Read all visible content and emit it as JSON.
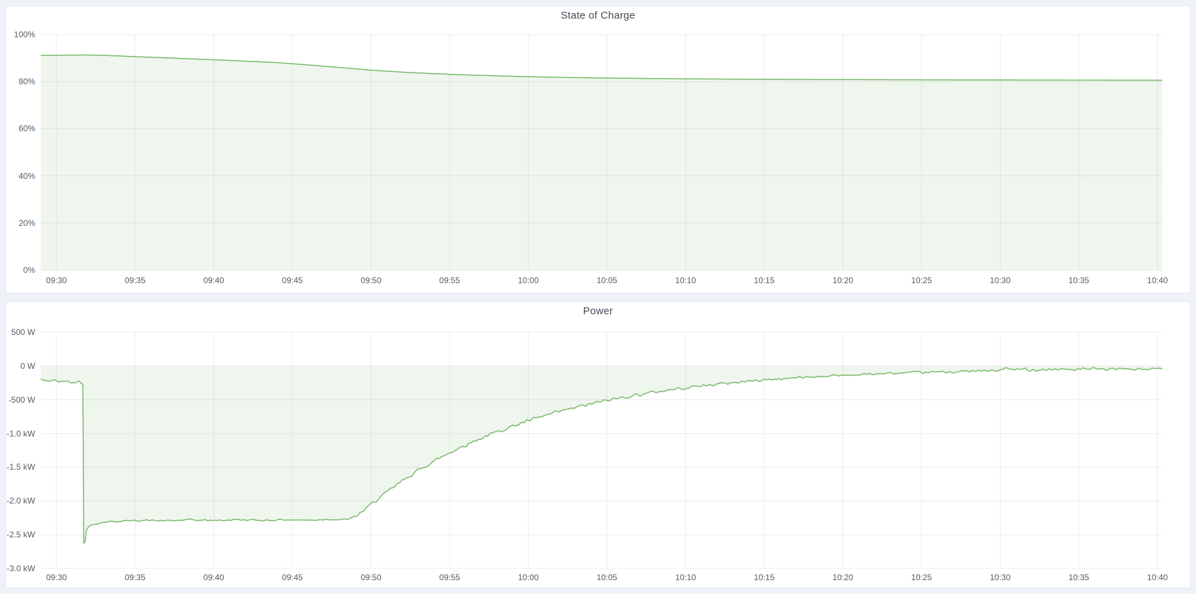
{
  "page": {
    "background_color": "#eff2f8",
    "panel_background": "#ffffff",
    "panel_border_color": "#e2e7f0",
    "title_color": "#454b57",
    "axis_text_color": "#565a62"
  },
  "chart_data": [
    {
      "id": "soc",
      "type": "area",
      "title": "State of Charge",
      "line_color": "#79b96d",
      "fill_opacity": 0.12,
      "grid_color": "#ececec",
      "legend": "none",
      "grid": "on",
      "xlim_minutes": [
        -1,
        70.3
      ],
      "ylim": [
        0,
        100
      ],
      "fill_to": 0,
      "noise_seed": 3,
      "x_ticks": [
        {
          "t": 0,
          "label": "09:30"
        },
        {
          "t": 5,
          "label": "09:35"
        },
        {
          "t": 10,
          "label": "09:40"
        },
        {
          "t": 15,
          "label": "09:45"
        },
        {
          "t": 20,
          "label": "09:50"
        },
        {
          "t": 25,
          "label": "09:55"
        },
        {
          "t": 30,
          "label": "10:00"
        },
        {
          "t": 35,
          "label": "10:05"
        },
        {
          "t": 40,
          "label": "10:10"
        },
        {
          "t": 45,
          "label": "10:15"
        },
        {
          "t": 50,
          "label": "10:20"
        },
        {
          "t": 55,
          "label": "10:25"
        },
        {
          "t": 60,
          "label": "10:30"
        },
        {
          "t": 65,
          "label": "10:35"
        },
        {
          "t": 70,
          "label": "10:40"
        }
      ],
      "y_ticks": [
        {
          "value": 100,
          "label": "100%"
        },
        {
          "value": 80,
          "label": "80%"
        },
        {
          "value": 60,
          "label": "60%"
        },
        {
          "value": 40,
          "label": "40%"
        },
        {
          "value": 20,
          "label": "20%"
        },
        {
          "value": 0,
          "label": "0%"
        }
      ],
      "points": [
        [
          -1,
          91.1
        ],
        [
          0,
          91.15
        ],
        [
          0.8,
          91.25
        ],
        [
          1.6,
          91.32
        ],
        [
          2.4,
          91.28
        ],
        [
          3.2,
          91.1
        ],
        [
          4,
          90.9
        ],
        [
          5,
          90.62
        ],
        [
          6,
          90.35
        ],
        [
          7,
          90.1
        ],
        [
          8,
          89.82
        ],
        [
          9,
          89.55
        ],
        [
          10,
          89.28
        ],
        [
          11,
          89.0
        ],
        [
          12,
          88.7
        ],
        [
          13,
          88.4
        ],
        [
          14,
          88.1
        ],
        [
          15,
          87.6
        ],
        [
          16,
          87.1
        ],
        [
          17,
          86.55
        ],
        [
          18,
          86.0
        ],
        [
          19,
          85.45
        ],
        [
          20,
          84.9
        ],
        [
          21,
          84.45
        ],
        [
          22,
          84.05
        ],
        [
          23,
          83.7
        ],
        [
          24,
          83.4
        ],
        [
          25,
          83.12
        ],
        [
          26,
          82.88
        ],
        [
          27,
          82.65
        ],
        [
          28,
          82.45
        ],
        [
          29,
          82.27
        ],
        [
          30,
          82.1
        ],
        [
          31,
          81.96
        ],
        [
          32,
          81.83
        ],
        [
          33,
          81.72
        ],
        [
          34,
          81.62
        ],
        [
          35,
          81.53
        ],
        [
          36,
          81.45
        ],
        [
          37,
          81.38
        ],
        [
          38,
          81.31
        ],
        [
          39,
          81.25
        ],
        [
          40,
          81.2
        ],
        [
          42,
          81.1
        ],
        [
          44,
          81.02
        ],
        [
          46,
          80.96
        ],
        [
          48,
          80.9
        ],
        [
          50,
          80.86
        ],
        [
          52,
          80.82
        ],
        [
          54,
          80.79
        ],
        [
          56,
          80.76
        ],
        [
          58,
          80.73
        ],
        [
          60,
          80.7
        ],
        [
          62,
          80.68
        ],
        [
          64,
          80.66
        ],
        [
          66,
          80.64
        ],
        [
          68,
          80.62
        ],
        [
          70.3,
          80.6
        ]
      ]
    },
    {
      "id": "power",
      "type": "area",
      "title": "Power",
      "line_color": "#79b96d",
      "fill_opacity": 0.12,
      "grid_color": "#ececec",
      "legend": "none",
      "grid": "on",
      "xlim_minutes": [
        -1,
        70.3
      ],
      "ylim": [
        -3000,
        500
      ],
      "fill_to": 0,
      "noise_seed": 42,
      "x_ticks": [
        {
          "t": 0,
          "label": "09:30"
        },
        {
          "t": 5,
          "label": "09:35"
        },
        {
          "t": 10,
          "label": "09:40"
        },
        {
          "t": 15,
          "label": "09:45"
        },
        {
          "t": 20,
          "label": "09:50"
        },
        {
          "t": 25,
          "label": "09:55"
        },
        {
          "t": 30,
          "label": "10:00"
        },
        {
          "t": 35,
          "label": "10:05"
        },
        {
          "t": 40,
          "label": "10:10"
        },
        {
          "t": 45,
          "label": "10:15"
        },
        {
          "t": 50,
          "label": "10:20"
        },
        {
          "t": 55,
          "label": "10:25"
        },
        {
          "t": 60,
          "label": "10:30"
        },
        {
          "t": 65,
          "label": "10:35"
        },
        {
          "t": 70,
          "label": "10:40"
        }
      ],
      "y_ticks": [
        {
          "value": 500,
          "label": "500 W"
        },
        {
          "value": 0,
          "label": "0 W"
        },
        {
          "value": -500,
          "label": "-500 W"
        },
        {
          "value": -1000,
          "label": "-1.0 kW"
        },
        {
          "value": -1500,
          "label": "-1.5 kW"
        },
        {
          "value": -2000,
          "label": "-2.0 kW"
        },
        {
          "value": -2500,
          "label": "-2.5 kW"
        },
        {
          "value": -3000,
          "label": "-3.0 kW"
        }
      ],
      "points": [
        [
          -1,
          -195,
          16
        ],
        [
          -0.6,
          -230,
          14
        ],
        [
          -0.2,
          -205,
          14
        ],
        [
          0.2,
          -240,
          14
        ],
        [
          0.6,
          -218,
          14
        ],
        [
          0.9,
          -245,
          12
        ],
        [
          1.2,
          -250,
          10
        ],
        [
          1.45,
          -215,
          8
        ],
        [
          1.6,
          -262,
          4
        ],
        [
          1.68,
          -268,
          2
        ],
        [
          1.74,
          -2630,
          2
        ],
        [
          1.82,
          -2600,
          4
        ],
        [
          1.92,
          -2420,
          6
        ],
        [
          2.1,
          -2370,
          8
        ],
        [
          2.4,
          -2345,
          10
        ],
        [
          2.8,
          -2325,
          12
        ],
        [
          3.2,
          -2310,
          14
        ],
        [
          4,
          -2300,
          15
        ],
        [
          5.5,
          -2285,
          15
        ],
        [
          7,
          -2295,
          15
        ],
        [
          8.5,
          -2280,
          15
        ],
        [
          10,
          -2290,
          15
        ],
        [
          11.5,
          -2278,
          15
        ],
        [
          13,
          -2288,
          14
        ],
        [
          14.5,
          -2278,
          14
        ],
        [
          16,
          -2285,
          14
        ],
        [
          17.3,
          -2272,
          13
        ],
        [
          18.2,
          -2278,
          12
        ],
        [
          18.6,
          -2265,
          12
        ],
        [
          19,
          -2235,
          20
        ],
        [
          19.5,
          -2145,
          22
        ],
        [
          20,
          -2050,
          24
        ],
        [
          20.5,
          -1960,
          25
        ],
        [
          21,
          -1870,
          26
        ],
        [
          21.5,
          -1785,
          27
        ],
        [
          22,
          -1700,
          28
        ],
        [
          22.5,
          -1622,
          28
        ],
        [
          23,
          -1548,
          29
        ],
        [
          23.5,
          -1477,
          29
        ],
        [
          24,
          -1410,
          30
        ],
        [
          24.5,
          -1345,
          30
        ],
        [
          25,
          -1285,
          30
        ],
        [
          25.5,
          -1228,
          30
        ],
        [
          26,
          -1173,
          30
        ],
        [
          26.5,
          -1120,
          30
        ],
        [
          27,
          -1070,
          30
        ],
        [
          27.5,
          -1022,
          30
        ],
        [
          28,
          -977,
          30
        ],
        [
          28.5,
          -933,
          30
        ],
        [
          29,
          -891,
          30
        ],
        [
          29.5,
          -851,
          30
        ],
        [
          30,
          -813,
          30
        ],
        [
          31,
          -741,
          30
        ],
        [
          32,
          -676,
          30
        ],
        [
          33,
          -616,
          29
        ],
        [
          34,
          -561,
          29
        ],
        [
          35,
          -511,
          28
        ],
        [
          36,
          -466,
          28
        ],
        [
          37,
          -425,
          27
        ],
        [
          38,
          -388,
          27
        ],
        [
          39,
          -354,
          26
        ],
        [
          40,
          -323,
          26
        ],
        [
          41,
          -295,
          25
        ],
        [
          42,
          -270,
          25
        ],
        [
          43,
          -247,
          24
        ],
        [
          44,
          -226,
          24
        ],
        [
          45,
          -207,
          23
        ],
        [
          46,
          -190,
          23
        ],
        [
          47,
          -175,
          22
        ],
        [
          48,
          -161,
          22
        ],
        [
          49,
          -149,
          21
        ],
        [
          50,
          -138,
          21
        ],
        [
          51,
          -128,
          21
        ],
        [
          52,
          -119,
          21
        ],
        [
          53,
          -111,
          21
        ],
        [
          54,
          -104,
          21
        ],
        [
          55,
          -97,
          22
        ],
        [
          56,
          -91,
          23
        ],
        [
          57,
          -86,
          24
        ],
        [
          58,
          -80,
          25
        ],
        [
          59,
          -74,
          26
        ],
        [
          60,
          -66,
          27
        ],
        [
          60.4,
          -30,
          18
        ],
        [
          60.8,
          -55,
          24
        ],
        [
          61.5,
          -50,
          26
        ],
        [
          62.5,
          -55,
          26
        ],
        [
          63.5,
          -48,
          26
        ],
        [
          64.5,
          -52,
          26
        ],
        [
          65.5,
          -47,
          26
        ],
        [
          66.5,
          -50,
          26
        ],
        [
          67.5,
          -45,
          26
        ],
        [
          68.5,
          -48,
          26
        ],
        [
          69.5,
          -44,
          24
        ],
        [
          70.3,
          -45,
          20
        ]
      ]
    }
  ]
}
